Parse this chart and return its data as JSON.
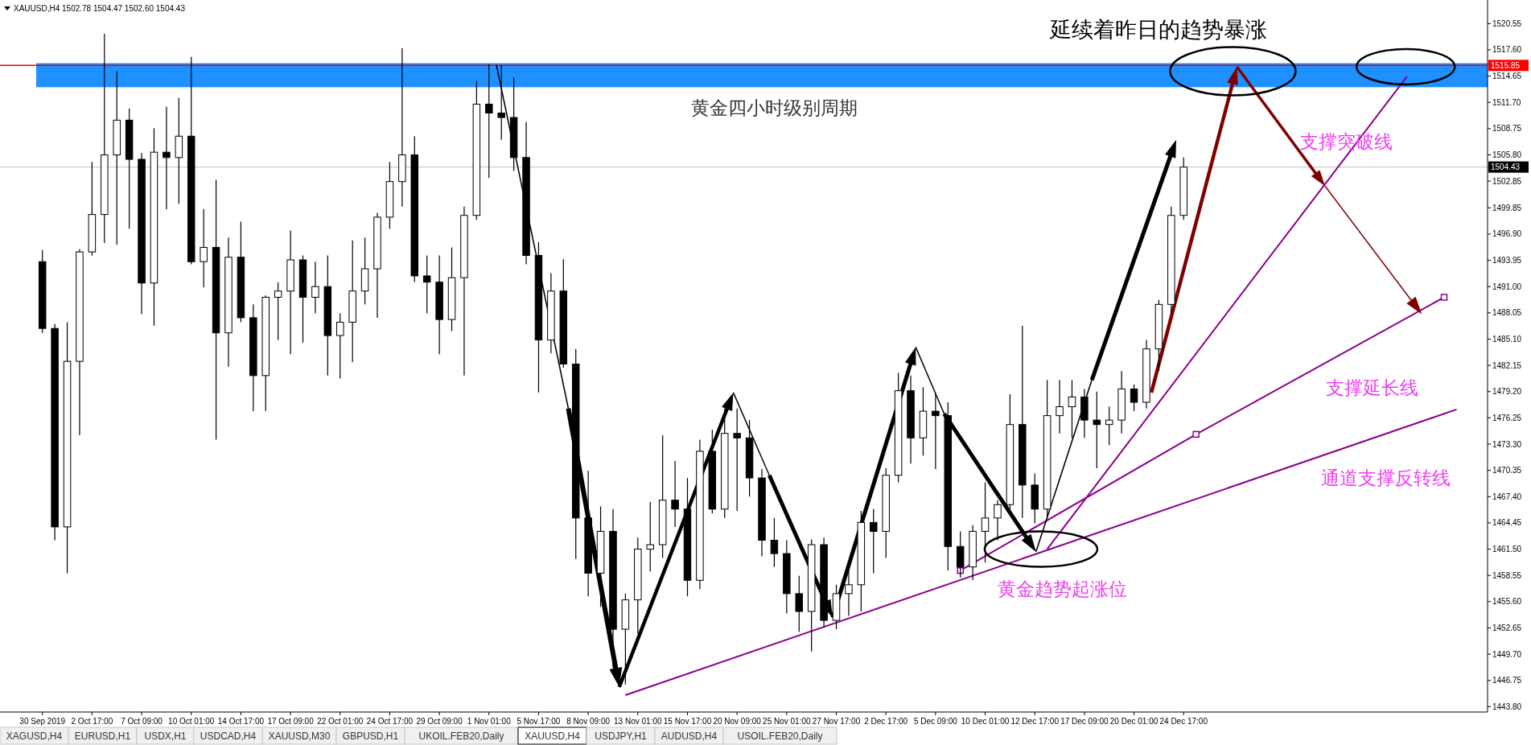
{
  "chart_data": {
    "type": "candlestick",
    "title": "XAUUSD,H4  1502.78 1504.47 1502.60 1504.43",
    "color": "#000000",
    "categories": [
      "30 Sep 2019",
      null,
      null,
      null,
      "2 Oct 17:00",
      null,
      null,
      null,
      "7 Oct 09:00",
      null,
      null,
      null,
      "10 Oct 01:00",
      null,
      null,
      null,
      "14 Oct 17:00",
      null,
      null,
      null,
      "17 Oct 09:00",
      null,
      null,
      null,
      "22 Oct 01:00",
      null,
      null,
      null,
      "24 Oct 17:00",
      null,
      null,
      null,
      "29 Oct 09:00",
      null,
      null,
      null,
      "1 Nov 01:00",
      null,
      null,
      null,
      "5 Nov 17:00",
      null,
      null,
      null,
      "8 Nov 09:00",
      null,
      null,
      null,
      "13 Nov 01:00",
      null,
      null,
      null,
      "15 Nov 17:00",
      null,
      null,
      null,
      "20 Nov 09:00",
      null,
      null,
      null,
      "25 Nov 01:00",
      null,
      null,
      null,
      "27 Nov 17:00",
      null,
      null,
      null,
      "2 Dec 17:00",
      null,
      null,
      null,
      "5 Dec 09:00",
      null,
      null,
      null,
      "10 Dec 01:00",
      null,
      null,
      null,
      "12 Dec 17:00",
      null,
      null,
      null,
      "17 Dec 09:00",
      null,
      null,
      null,
      "20 Dec 01:00",
      null,
      null,
      null,
      "24 Dec 17:00",
      null,
      null,
      null,
      null,
      null,
      null,
      null,
      null,
      null,
      null,
      null,
      null,
      null,
      null,
      null,
      null,
      null,
      null,
      null,
      null,
      null,
      null,
      null,
      null
    ],
    "ohlc": [
      [
        1493.8,
        1495.1,
        1485.8,
        1486.3
      ],
      [
        1486.3,
        1486.8,
        1462.5,
        1464.0
      ],
      [
        1464.0,
        1487.0,
        1458.8,
        1482.6
      ],
      [
        1482.6,
        1495.2,
        1474.3,
        1494.9
      ],
      [
        1494.9,
        1505.0,
        1494.5,
        1499.1
      ],
      [
        1499.1,
        1519.4,
        1495.9,
        1505.8
      ],
      [
        1505.8,
        1515.2,
        1495.7,
        1509.7
      ],
      [
        1509.7,
        1511.0,
        1497.5,
        1505.3
      ],
      [
        1505.3,
        1506.0,
        1487.9,
        1491.4
      ],
      [
        1491.4,
        1508.8,
        1486.6,
        1506.1
      ],
      [
        1506.1,
        1511.2,
        1499.7,
        1505.5
      ],
      [
        1505.5,
        1512.2,
        1500.3,
        1507.9
      ],
      [
        1507.9,
        1516.8,
        1493.5,
        1493.8
      ],
      [
        1493.8,
        1499.7,
        1490.9,
        1495.4
      ],
      [
        1495.4,
        1503.0,
        1473.8,
        1485.8
      ],
      [
        1485.8,
        1496.5,
        1482.0,
        1494.3
      ],
      [
        1494.3,
        1498.3,
        1487.0,
        1487.5
      ],
      [
        1487.5,
        1489.0,
        1477.0,
        1481.0
      ],
      [
        1481.0,
        1490.0,
        1477.0,
        1489.8
      ],
      [
        1489.8,
        1491.5,
        1485.0,
        1490.5
      ],
      [
        1490.5,
        1497.3,
        1483.4,
        1494.0
      ],
      [
        1494.0,
        1494.5,
        1484.7,
        1489.8
      ],
      [
        1489.8,
        1493.8,
        1488.0,
        1491.0
      ],
      [
        1491.0,
        1494.5,
        1481.0,
        1485.5
      ],
      [
        1485.5,
        1488.0,
        1480.7,
        1487.0
      ],
      [
        1487.0,
        1496.2,
        1482.5,
        1490.5
      ],
      [
        1490.5,
        1496.5,
        1489.0,
        1493.0
      ],
      [
        1493.0,
        1499.3,
        1487.5,
        1498.8
      ],
      [
        1498.8,
        1505.0,
        1497.5,
        1502.8
      ],
      [
        1502.8,
        1517.8,
        1500.0,
        1505.8
      ],
      [
        1505.8,
        1507.9,
        1491.5,
        1492.2
      ],
      [
        1492.2,
        1494.5,
        1488.0,
        1491.5
      ],
      [
        1491.5,
        1494.5,
        1483.4,
        1487.3
      ],
      [
        1487.3,
        1495.4,
        1486.0,
        1492.0
      ],
      [
        1492.0,
        1500.0,
        1481.0,
        1499.0
      ],
      [
        1499.0,
        1514.1,
        1498.5,
        1511.5
      ],
      [
        1511.5,
        1516.0,
        1503.2,
        1510.5
      ],
      [
        1510.5,
        1515.9,
        1507.5,
        1510.0
      ],
      [
        1510.0,
        1514.5,
        1504.0,
        1505.5
      ],
      [
        1505.5,
        1509.5,
        1493.5,
        1494.5
      ],
      [
        1494.5,
        1496.0,
        1479.1,
        1485.0
      ],
      [
        1485.0,
        1492.5,
        1483.5,
        1490.5
      ],
      [
        1490.5,
        1494.1,
        1481.9,
        1482.3
      ],
      [
        1482.3,
        1484.0,
        1460.4,
        1465.0
      ],
      [
        1465.0,
        1470.3,
        1456.2,
        1458.8
      ],
      [
        1458.8,
        1466.3,
        1455.0,
        1463.5
      ],
      [
        1463.5,
        1466.0,
        1448.2,
        1452.5
      ],
      [
        1452.5,
        1456.5,
        1446.3,
        1455.8
      ],
      [
        1455.8,
        1462.8,
        1452.0,
        1461.5
      ],
      [
        1461.5,
        1466.8,
        1459.0,
        1462.0
      ],
      [
        1462.0,
        1474.3,
        1460.5,
        1467.0
      ],
      [
        1467.0,
        1471.4,
        1464.0,
        1466.0
      ],
      [
        1466.0,
        1469.5,
        1456.2,
        1458.0
      ],
      [
        1458.0,
        1473.8,
        1457.0,
        1472.5
      ],
      [
        1472.5,
        1474.9,
        1465.5,
        1466.0
      ],
      [
        1466.0,
        1477.3,
        1465.0,
        1474.5
      ],
      [
        1474.5,
        1477.3,
        1465.8,
        1474.0
      ],
      [
        1474.0,
        1476.0,
        1467.4,
        1469.5
      ],
      [
        1469.5,
        1470.5,
        1460.7,
        1462.5
      ],
      [
        1462.5,
        1465.0,
        1459.5,
        1461.0
      ],
      [
        1461.0,
        1462.5,
        1454.3,
        1456.5
      ],
      [
        1456.5,
        1458.5,
        1452.2,
        1454.5
      ],
      [
        1454.5,
        1462.6,
        1450.0,
        1462.0
      ],
      [
        1462.0,
        1462.8,
        1452.7,
        1453.5
      ],
      [
        1453.5,
        1457.5,
        1452.5,
        1456.5
      ],
      [
        1456.5,
        1459.4,
        1454.0,
        1457.5
      ],
      [
        1457.5,
        1465.8,
        1454.5,
        1464.5
      ],
      [
        1464.5,
        1466.0,
        1458.8,
        1463.5
      ],
      [
        1463.5,
        1470.6,
        1460.5,
        1469.8
      ],
      [
        1469.8,
        1481.3,
        1469.0,
        1479.3
      ],
      [
        1479.3,
        1481.0,
        1471.1,
        1474.0
      ],
      [
        1474.0,
        1479.7,
        1472.0,
        1477.0
      ],
      [
        1477.0,
        1479.0,
        1470.5,
        1476.5
      ],
      [
        1476.5,
        1478.0,
        1459.1,
        1461.8
      ],
      [
        1461.8,
        1463.5,
        1458.3,
        1459.5
      ],
      [
        1459.5,
        1464.2,
        1458.0,
        1463.5
      ],
      [
        1463.5,
        1469.0,
        1460.0,
        1465.0
      ],
      [
        1465.0,
        1467.0,
        1462.5,
        1466.5
      ],
      [
        1466.5,
        1478.9,
        1465.5,
        1475.5
      ],
      [
        1475.5,
        1486.6,
        1465.0,
        1468.7
      ],
      [
        1468.7,
        1470.0,
        1464.4,
        1466.0
      ],
      [
        1466.0,
        1480.5,
        1465.0,
        1476.5
      ],
      [
        1476.5,
        1480.5,
        1474.5,
        1477.5
      ],
      [
        1477.5,
        1480.5,
        1474.0,
        1478.6
      ],
      [
        1478.6,
        1479.5,
        1474.0,
        1476.0
      ],
      [
        1476.0,
        1479.2,
        1470.6,
        1475.5
      ],
      [
        1475.5,
        1477.5,
        1473.2,
        1476.0
      ],
      [
        1476.0,
        1481.5,
        1474.5,
        1479.5
      ],
      [
        1479.5,
        1480.0,
        1477.0,
        1478.0
      ],
      [
        1478.0,
        1485.0,
        1477.3,
        1484.0
      ],
      [
        1484.0,
        1489.5,
        1481.5,
        1489.0
      ],
      [
        1489.0,
        1500.0,
        1488.0,
        1499.0
      ],
      [
        1499.0,
        1505.5,
        1498.5,
        1504.43
      ],
      null,
      null,
      null,
      null,
      null,
      null,
      null,
      null,
      null,
      null,
      null,
      null,
      null,
      null,
      null,
      null,
      null,
      null,
      null,
      null,
      null,
      null,
      null,
      null
    ],
    "series": [
      {
        "type": "line",
        "color": "#8b008b",
        "values": [
          null,
          null,
          null,
          null,
          null,
          null,
          null,
          null,
          null,
          null,
          null,
          null,
          null,
          null,
          null,
          null,
          null,
          null,
          null,
          null,
          null,
          null,
          null,
          null,
          null,
          null,
          null,
          null,
          null,
          null,
          null,
          null,
          null,
          null,
          null,
          null,
          null,
          null,
          null,
          null,
          null,
          null,
          null,
          null,
          null,
          null,
          null,
          1445.1,
          null,
          null,
          null,
          null,
          null,
          null,
          null,
          null,
          null,
          null,
          null,
          null,
          null,
          null,
          null,
          null,
          null,
          null,
          null,
          null,
          null,
          null,
          null,
          null,
          null,
          null,
          null,
          null,
          null,
          null,
          null,
          null,
          null,
          null,
          null,
          null,
          null,
          null,
          null,
          null,
          null,
          null,
          null,
          null,
          null,
          null,
          null,
          null,
          null,
          null,
          null,
          null,
          null,
          null,
          null,
          null,
          null,
          null,
          null,
          null,
          null,
          null,
          null,
          null,
          null,
          null,
          1477.2,
          null,
          null
        ]
      },
      {
        "type": "line",
        "color": "#8b008b",
        "marker": "square",
        "values": [
          null,
          null,
          null,
          null,
          null,
          null,
          null,
          null,
          null,
          null,
          null,
          null,
          null,
          null,
          null,
          null,
          null,
          null,
          null,
          null,
          null,
          null,
          null,
          null,
          null,
          null,
          null,
          null,
          null,
          null,
          null,
          null,
          null,
          null,
          null,
          null,
          null,
          null,
          null,
          null,
          null,
          null,
          null,
          null,
          null,
          null,
          null,
          null,
          null,
          null,
          null,
          null,
          null,
          null,
          null,
          null,
          null,
          null,
          null,
          null,
          null,
          null,
          null,
          null,
          null,
          null,
          null,
          null,
          null,
          null,
          null,
          null,
          null,
          null,
          1459.1,
          null,
          null,
          null,
          null,
          null,
          null,
          null,
          null,
          null,
          null,
          null,
          null,
          null,
          null,
          null,
          null,
          null,
          null,
          1474.4,
          null,
          null,
          null,
          null,
          null,
          null,
          null,
          null,
          null,
          null,
          null,
          null,
          null,
          null,
          null,
          null,
          null,
          null,
          null,
          1489.8,
          null,
          null,
          null
        ]
      },
      {
        "type": "line",
        "color": "#8b008b",
        "values": [
          null,
          null,
          null,
          null,
          null,
          null,
          null,
          null,
          null,
          null,
          null,
          null,
          null,
          null,
          null,
          null,
          null,
          null,
          null,
          null,
          null,
          null,
          null,
          null,
          null,
          null,
          null,
          null,
          null,
          null,
          null,
          null,
          null,
          null,
          null,
          null,
          null,
          null,
          null,
          null,
          null,
          null,
          null,
          null,
          null,
          null,
          null,
          null,
          null,
          null,
          null,
          null,
          null,
          null,
          null,
          null,
          null,
          null,
          null,
          null,
          null,
          null,
          null,
          null,
          null,
          null,
          null,
          null,
          null,
          null,
          null,
          null,
          null,
          null,
          null,
          null,
          null,
          null,
          null,
          null,
          null,
          1461.5,
          null,
          null,
          null,
          null,
          null,
          null,
          null,
          null,
          null,
          null,
          null,
          null,
          null,
          null,
          null,
          null,
          null,
          null,
          null,
          null,
          null,
          null,
          null,
          null,
          null,
          null,
          null,
          null,
          1514.6,
          null,
          null,
          null,
          null,
          null,
          null
        ]
      }
    ],
    "ylim": [
      1443.2,
      1523.2
    ],
    "yticks": [
      {
        "value": 1443.8,
        "label": "1443.80"
      },
      1446.75,
      {
        "value": 1449.7,
        "label": "1449.70"
      },
      1452.65,
      {
        "value": 1455.6,
        "label": "1455.60"
      },
      1458.55,
      {
        "value": 1461.5,
        "label": "1461.50"
      },
      1464.45,
      {
        "value": 1467.4,
        "label": "1467.40"
      },
      1470.35,
      {
        "value": 1473.3,
        "label": "1473.30"
      },
      1476.25,
      {
        "value": 1479.2,
        "label": "1479.20"
      },
      1482.15,
      {
        "value": 1485.1,
        "label": "1485.10"
      },
      1488.05,
      {
        "value": 1491,
        "label": "1491.00"
      },
      1493.95,
      {
        "value": 1496.9,
        "label": "1496.90"
      },
      1499.85,
      1502.85,
      {
        "value": 1505.8,
        "label": "1505.80"
      },
      1508.75,
      {
        "value": 1511.7,
        "label": "1511.70"
      },
      1514.65,
      {
        "value": 1517.6,
        "label": "1517.60"
      },
      1520.55
    ],
    "ref_lines": [
      {
        "axis": "y",
        "value": 1515.85,
        "label": "1515.85",
        "color": "#ff0000"
      },
      {
        "axis": "y",
        "value": 1504.43,
        "label": "1504.43",
        "color": "#c0c0c0"
      }
    ],
    "bands": [
      {
        "axis": "y",
        "from": 1513.4,
        "to": 1516.1,
        "color": "#1e90ff"
      }
    ],
    "annotations": [
      "延续着昨日的趋势暴涨",
      "黄金四小时级别周期",
      "支撑突破线",
      "支撑延长线",
      "通道支撑反转线",
      "黄金趋势起涨位",
      "XAGUSD,H4",
      "EURUSD,H1",
      "USDX,H1",
      "USDCAD,H4",
      "XAUUSD,M30",
      "GBPUSD,H1",
      "UKOIL.FEB20,Daily",
      "XAUUSD,H4",
      "USDJPY,H1",
      "AUDUSD,H4",
      "USOIL.FEB20,Daily"
    ]
  }
}
